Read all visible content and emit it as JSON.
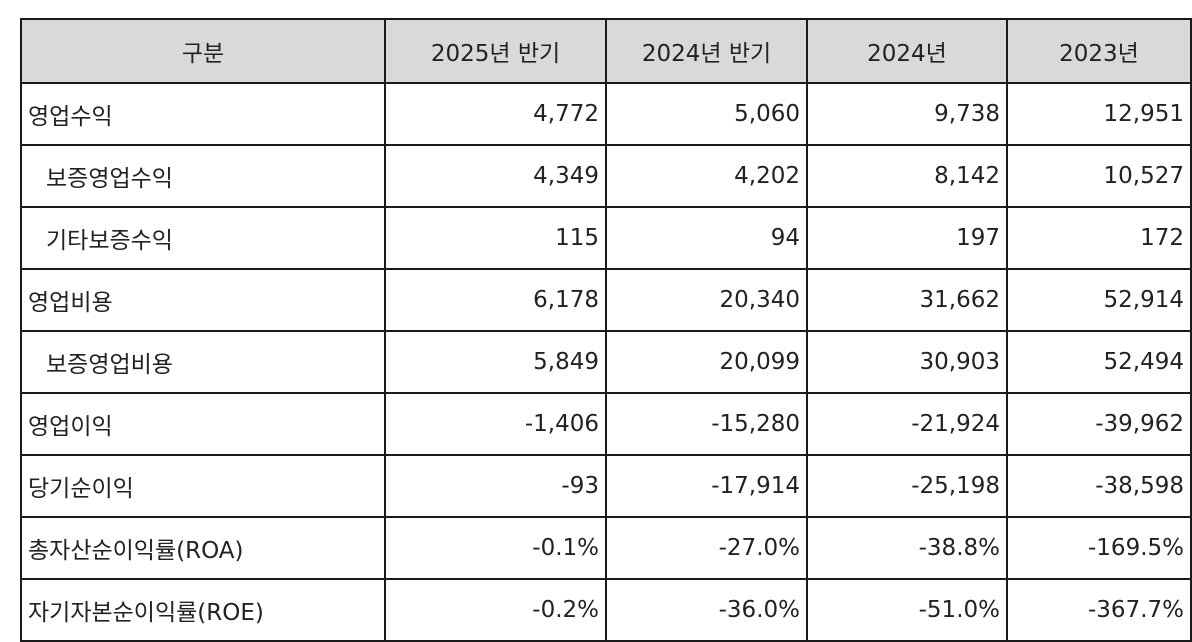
{
  "table": {
    "headers": [
      "구분",
      "2025년 반기",
      "2024년 반기",
      "2024년",
      "2023년"
    ],
    "rows": [
      {
        "label": "영업수익",
        "indent": false,
        "values": [
          "4,772",
          "5,060",
          "9,738",
          "12,951"
        ]
      },
      {
        "label": "보증영업수익",
        "indent": true,
        "values": [
          "4,349",
          "4,202",
          "8,142",
          "10,527"
        ]
      },
      {
        "label": "기타보증수익",
        "indent": true,
        "values": [
          "115",
          "94",
          "197",
          "172"
        ]
      },
      {
        "label": "영업비용",
        "indent": false,
        "values": [
          "6,178",
          "20,340",
          "31,662",
          "52,914"
        ]
      },
      {
        "label": "보증영업비용",
        "indent": true,
        "values": [
          "5,849",
          "20,099",
          "30,903",
          "52,494"
        ]
      },
      {
        "label": "영업이익",
        "indent": false,
        "values": [
          "-1,406",
          "-15,280",
          "-21,924",
          "-39,962"
        ]
      },
      {
        "label": "당기순이익",
        "indent": false,
        "values": [
          "-93",
          "-17,914",
          "-25,198",
          "-38,598"
        ]
      },
      {
        "label": "총자산순이익률(ROA)",
        "indent": false,
        "values": [
          "-0.1%",
          "-27.0%",
          "-38.8%",
          "-169.5%"
        ]
      },
      {
        "label": "자기자본순이익률(ROE)",
        "indent": false,
        "values": [
          "-0.2%",
          "-36.0%",
          "-51.0%",
          "-367.7%"
        ]
      }
    ]
  },
  "colors": {
    "header_bg": "#d9d9d9",
    "border": "#1a1a1a",
    "text": "#222222"
  }
}
